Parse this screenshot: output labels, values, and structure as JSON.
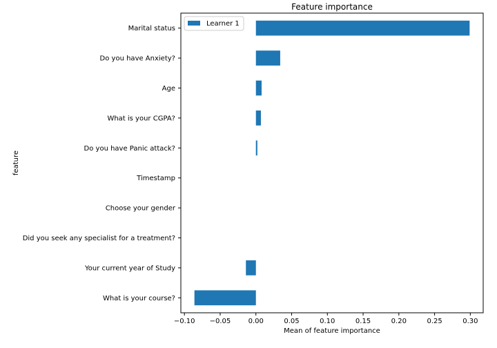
{
  "chart_data": {
    "type": "bar",
    "orientation": "horizontal",
    "title": "Feature importance",
    "xlabel": "Mean of feature importance",
    "ylabel": "feature",
    "categories": [
      "Marital status",
      "Do you have Anxiety?",
      "Age",
      "What is your CGPA?",
      "Do you have Panic attack?",
      "Timestamp",
      "Choose your gender",
      "Did you seek any specialist for a treatment?",
      "Your current year of Study",
      "What is your course?"
    ],
    "series": [
      {
        "name": "Learner 1",
        "color": "#1f77b4",
        "values": [
          0.299,
          0.034,
          0.008,
          0.007,
          0.002,
          0.0,
          0.0,
          0.0,
          -0.014,
          -0.086
        ]
      }
    ],
    "xlim": [
      -0.105,
      0.318
    ],
    "xticks": [
      -0.1,
      -0.05,
      0.0,
      0.05,
      0.1,
      0.15,
      0.2,
      0.25,
      0.3
    ],
    "xtick_labels": [
      "−0.10",
      "−0.05",
      "0.00",
      "0.05",
      "0.10",
      "0.15",
      "0.20",
      "0.25",
      "0.30"
    ],
    "grid": false,
    "legend_position": "top-left"
  }
}
